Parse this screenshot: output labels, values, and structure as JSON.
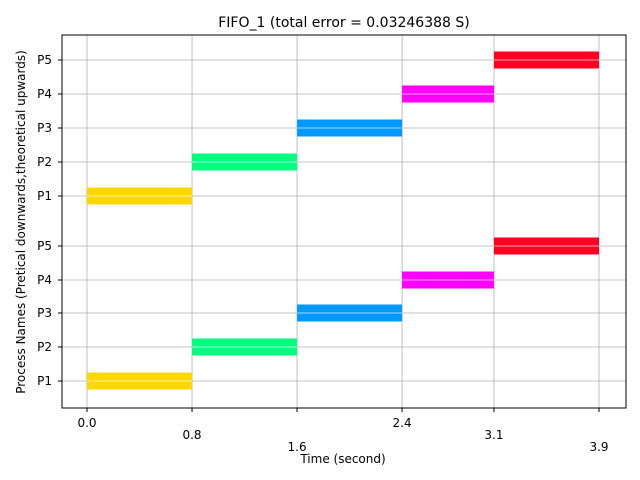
{
  "chart_data": {
    "type": "gantt",
    "title": "FIFO_1 (total error = 0.03246388 S)",
    "xlabel": "Time (second)",
    "ylabel": "Process Names (Pretical downwards,theoretical upwards)",
    "x_ticks": [
      "0.0",
      "0.8",
      "1.6",
      "2.4",
      "3.1",
      "3.9"
    ],
    "y_tick_labels": [
      "P1",
      "P2",
      "P3",
      "P4",
      "P5",
      "P1",
      "P2",
      "P3",
      "P4",
      "P5"
    ],
    "grid": true,
    "groups": [
      {
        "name": "practical",
        "tasks": [
          {
            "process": "P1",
            "start": 0.0,
            "end": 0.8,
            "color": "#FFD700"
          },
          {
            "process": "P2",
            "start": 0.8,
            "end": 1.6,
            "color": "#00FF80"
          },
          {
            "process": "P3",
            "start": 1.6,
            "end": 2.4,
            "color": "#0099FF"
          },
          {
            "process": "P4",
            "start": 2.4,
            "end": 3.1,
            "color": "#FF00FF"
          },
          {
            "process": "P5",
            "start": 3.1,
            "end": 3.9,
            "color": "#FF0022"
          }
        ]
      },
      {
        "name": "theoretical",
        "tasks": [
          {
            "process": "P1",
            "start": 0.0,
            "end": 0.8,
            "color": "#FFD700"
          },
          {
            "process": "P2",
            "start": 0.8,
            "end": 1.6,
            "color": "#00FF80"
          },
          {
            "process": "P3",
            "start": 1.6,
            "end": 2.4,
            "color": "#0099FF"
          },
          {
            "process": "P4",
            "start": 2.4,
            "end": 3.1,
            "color": "#FF00FF"
          },
          {
            "process": "P5",
            "start": 3.1,
            "end": 3.9,
            "color": "#FF0022"
          }
        ]
      }
    ]
  }
}
